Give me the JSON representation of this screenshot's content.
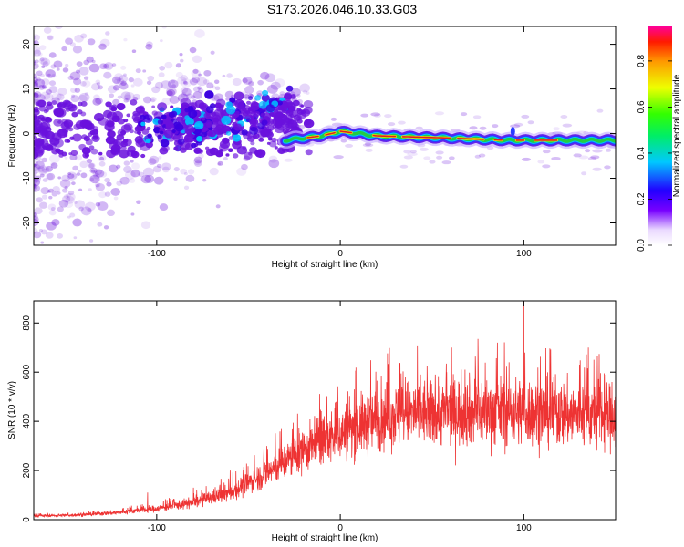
{
  "title": "S173.2026.046.10.33.G03",
  "colors": {
    "snr_line": "#ee3333",
    "band_core": "#dd2222",
    "band_edge": "#22cc44",
    "scatter": "#6a11dd"
  },
  "chart_data": [
    {
      "type": "heatmap",
      "name": "spectrogram",
      "xlabel": "Height of straight line (km)",
      "ylabel": "Frequency (Hz)",
      "xlim": [
        -167,
        150
      ],
      "ylim": [
        -25,
        24
      ],
      "xticks": [
        -100,
        0,
        100
      ],
      "xtick_labels": [
        "-100",
        "0",
        "100"
      ],
      "yticks": [
        20,
        10,
        0,
        -10,
        -20
      ],
      "ytick_labels": [
        "20",
        "10",
        "0",
        "-10",
        "-20"
      ],
      "colorbar": {
        "label": "Normalized spectral amplitude",
        "range": [
          0,
          0.95
        ],
        "ticks": [
          0.8,
          0.6,
          0.4,
          0.2,
          0.0
        ],
        "tick_labels": [
          "0.8",
          "0.6",
          "0.4",
          "0.2",
          "0.0"
        ]
      },
      "band_center": [
        [
          -30,
          -1.5
        ],
        [
          -20,
          -1
        ],
        [
          -10,
          -0.5
        ],
        [
          0,
          0.5
        ],
        [
          20,
          -0.5
        ],
        [
          60,
          -1
        ],
        [
          90,
          -1.5
        ],
        [
          100,
          -1.5
        ],
        [
          130,
          -1.5
        ],
        [
          150,
          -1.5
        ]
      ]
    },
    {
      "type": "line",
      "name": "snr",
      "xlabel": "Height of straight line (km)",
      "ylabel": "SNR (10 * v/v)",
      "xlim": [
        -167,
        150
      ],
      "ylim": [
        0,
        890
      ],
      "xticks": [
        -100,
        0,
        100
      ],
      "xtick_labels": [
        "-100",
        "0",
        "100"
      ],
      "yticks": [
        0,
        200,
        400,
        600,
        800
      ],
      "ytick_labels": [
        "0",
        "200",
        "400",
        "600",
        "800"
      ],
      "envelope": [
        [
          -167,
          15
        ],
        [
          -140,
          20
        ],
        [
          -120,
          30
        ],
        [
          -100,
          45
        ],
        [
          -80,
          70
        ],
        [
          -60,
          110
        ],
        [
          -40,
          190
        ],
        [
          -25,
          260
        ],
        [
          -10,
          320
        ],
        [
          10,
          380
        ],
        [
          25,
          420
        ],
        [
          40,
          430
        ],
        [
          60,
          440
        ],
        [
          80,
          440
        ],
        [
          100,
          440
        ],
        [
          120,
          430
        ],
        [
          150,
          420
        ]
      ],
      "spikes": [
        [
          -105,
          110
        ],
        [
          -80,
          130
        ],
        [
          -60,
          200
        ],
        [
          -40,
          300
        ],
        [
          -20,
          350
        ],
        [
          -10,
          400
        ],
        [
          20,
          500
        ],
        [
          40,
          520
        ],
        [
          58,
          600
        ],
        [
          68,
          610
        ],
        [
          75,
          735
        ],
        [
          85,
          600
        ],
        [
          92,
          640
        ],
        [
          100,
          890
        ],
        [
          100.6,
          80
        ],
        [
          112,
          560
        ],
        [
          120,
          520
        ],
        [
          132,
          540
        ],
        [
          140,
          560
        ],
        [
          148,
          560
        ]
      ]
    }
  ]
}
